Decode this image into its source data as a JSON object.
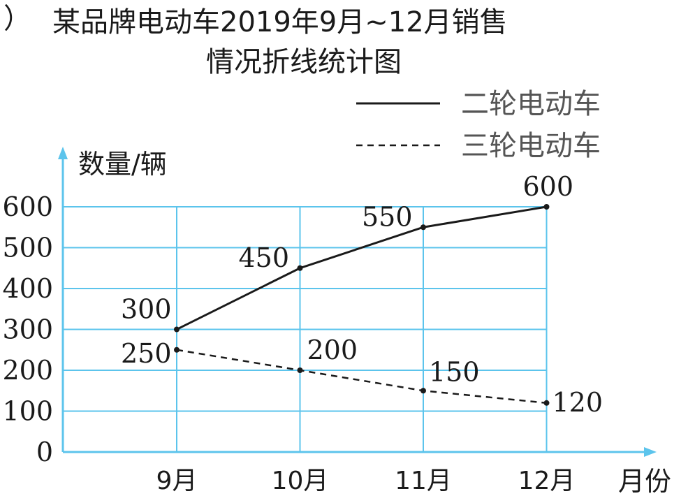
{
  "chart_data": {
    "type": "line",
    "paren": "）",
    "title_line1": "某品牌电动车2019年9月~12月销售",
    "title_line2": "情况折线统计图",
    "ylabel": "数量/辆",
    "xlabel": "月份",
    "categories": [
      "9月",
      "10月",
      "11月",
      "12月"
    ],
    "yticks": [
      0,
      100,
      200,
      300,
      400,
      500,
      600
    ],
    "ylim": [
      0,
      600
    ],
    "grid": true,
    "legend_position": "top-right",
    "series": [
      {
        "name": "二轮电动车",
        "style": "solid",
        "values": [
          300,
          450,
          550,
          600
        ]
      },
      {
        "name": "三轮电动车",
        "style": "dashed",
        "values": [
          250,
          200,
          150,
          120
        ]
      }
    ],
    "colors": {
      "grid": "#5cc4ec",
      "line": "#1a1a1a",
      "legend_text": "#555555"
    }
  }
}
